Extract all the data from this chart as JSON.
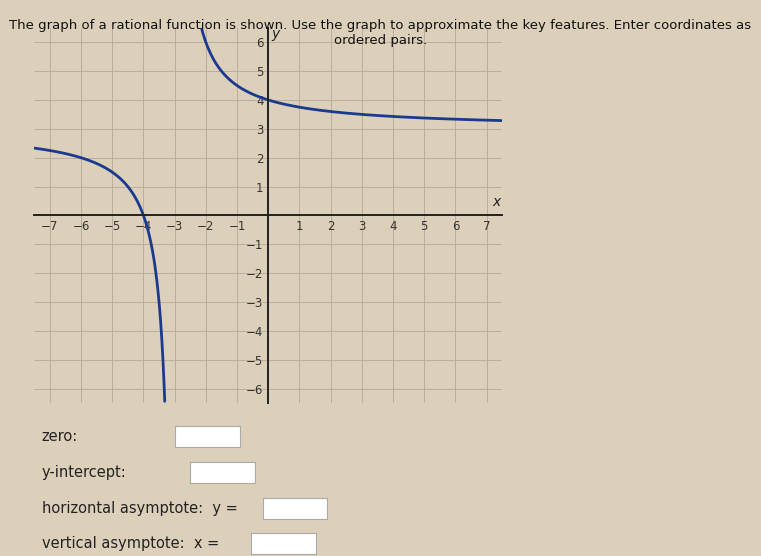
{
  "title": "The graph of a rational function is shown. Use the graph to approximate the key features. Enter coordinates as ordered pairs.",
  "xlim": [
    -7.5,
    7.5
  ],
  "ylim": [
    -6.5,
    6.5
  ],
  "xticks": [
    -7,
    -6,
    -5,
    -4,
    -3,
    -2,
    -1,
    1,
    2,
    3,
    4,
    5,
    6,
    7
  ],
  "yticks": [
    -6,
    -5,
    -4,
    -3,
    -2,
    -1,
    1,
    2,
    3,
    4,
    5,
    6
  ],
  "vertical_asymptote": -3,
  "horizontal_asymptote": 3,
  "k": 3,
  "curve_color": "#1a3a8f",
  "curve_linewidth": 2.0,
  "grid_color": "#bbaa99",
  "background_color": "#ddd0bb",
  "plot_bg_color": "#ddd0bb",
  "zero_label": "zero:",
  "yintercept_label": "y-intercept:",
  "horiz_asym_label": "horizontal asymptote:  y =",
  "vert_asym_label": "vertical asymptote:  x =",
  "label_fontsize": 10.5,
  "tick_fontsize": 8.5,
  "axis_label_x": "x",
  "axis_label_y": "y"
}
